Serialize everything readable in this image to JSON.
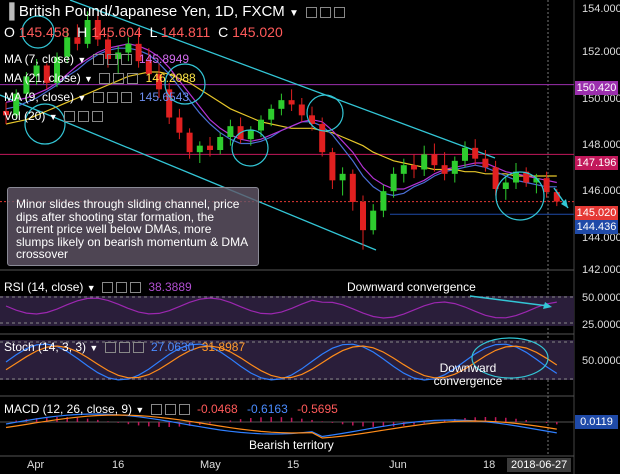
{
  "header": {
    "title": "British Pound/Japanese Yen, 1D, FXCM",
    "ohlc": {
      "o_label": "O",
      "o": "145.458",
      "h_label": "H",
      "h": "145.604",
      "l_label": "L",
      "l": "144.811",
      "c_label": "C",
      "c": "145.020"
    },
    "ma7": {
      "label": "MA (7, close)",
      "value": "145.8949"
    },
    "ma21": {
      "label": "MA (21, close)",
      "value": "146.2088"
    },
    "ma9": {
      "label": "MA (9, close)",
      "value": "145.6543"
    },
    "vol": {
      "label": "Vol (20)"
    }
  },
  "annotation": {
    "note": "Minor slides through sliding channel, price dips after shooting star formation, the current price well below DMAs, more slumps likely on bearish momentum & DMA crossover"
  },
  "price_axis": {
    "ticks": [
      "154.000",
      "152.000",
      "150.000",
      "148.000",
      "146.000",
      "144.000",
      "142.000"
    ],
    "markers": [
      {
        "label": "150.420",
        "color": "#9b2fae"
      },
      {
        "label": "147.196",
        "color": "#c2185b"
      },
      {
        "label": "145.020",
        "color": "#e53935"
      },
      {
        "label": "144.436",
        "color": "#1f4aa8"
      }
    ]
  },
  "rsi": {
    "label": "RSI (14, close)",
    "value": "38.3889",
    "ticks": [
      "50.0000",
      "25.0000"
    ],
    "annotation": "Downward convergence"
  },
  "stoch": {
    "label": "Stoch (14, 3, 3)",
    "k": "27.0630",
    "d": "31.8987",
    "ticks": [
      "50.0000"
    ],
    "annotation": "Downward convergence"
  },
  "macd": {
    "label": "MACD (12, 26, close, 9)",
    "values": [
      "-0.0468",
      "-0.6163",
      "-0.5695"
    ],
    "marker": "0.0119",
    "annotation": "Bearish territory"
  },
  "time_axis": {
    "labels": [
      "Apr",
      "16",
      "May",
      "15",
      "Jun",
      "18"
    ],
    "current": "2018-06-27"
  },
  "colors": {
    "up": "#2ecc2e",
    "down": "#e02020",
    "ma7": "#b533d6",
    "ma21": "#e6c62a",
    "ma9": "#4a6fd6",
    "channel": "#33c6d6",
    "rsi": "#9c27b0",
    "stoch_k": "#2f7fff",
    "stoch_d": "#ff8c1a",
    "macd_line": "#2f7fff",
    "signal": "#ff8c1a",
    "panel": "#2a1e3a",
    "hist": "#c2185b"
  },
  "chart_data": {
    "type": "candlestick",
    "symbol": "British Pound/Japanese Yen",
    "timeframe": "1D",
    "y_range": [
      142.0,
      154.0
    ],
    "candles": [
      {
        "o": 149.2,
        "h": 149.6,
        "l": 148.6,
        "c": 149.0
      },
      {
        "o": 149.0,
        "h": 150.2,
        "l": 148.8,
        "c": 150.0
      },
      {
        "o": 150.0,
        "h": 151.0,
        "l": 149.6,
        "c": 150.8
      },
      {
        "o": 150.8,
        "h": 151.6,
        "l": 150.4,
        "c": 151.3
      },
      {
        "o": 151.3,
        "h": 151.4,
        "l": 150.2,
        "c": 150.5
      },
      {
        "o": 150.5,
        "h": 151.9,
        "l": 150.3,
        "c": 151.7
      },
      {
        "o": 151.7,
        "h": 153.0,
        "l": 151.4,
        "c": 152.6
      },
      {
        "o": 152.6,
        "h": 153.2,
        "l": 152.0,
        "c": 152.3
      },
      {
        "o": 152.3,
        "h": 153.8,
        "l": 152.1,
        "c": 153.4
      },
      {
        "o": 153.4,
        "h": 153.7,
        "l": 152.2,
        "c": 152.5
      },
      {
        "o": 152.5,
        "h": 152.8,
        "l": 151.2,
        "c": 151.6
      },
      {
        "o": 151.6,
        "h": 152.2,
        "l": 150.9,
        "c": 151.9
      },
      {
        "o": 151.9,
        "h": 152.6,
        "l": 151.5,
        "c": 152.3
      },
      {
        "o": 152.3,
        "h": 152.9,
        "l": 151.2,
        "c": 151.5
      },
      {
        "o": 151.5,
        "h": 152.1,
        "l": 150.6,
        "c": 150.9
      },
      {
        "o": 150.9,
        "h": 151.4,
        "l": 149.8,
        "c": 150.2
      },
      {
        "o": 150.2,
        "h": 150.5,
        "l": 148.6,
        "c": 148.9
      },
      {
        "o": 148.9,
        "h": 149.3,
        "l": 147.9,
        "c": 148.2
      },
      {
        "o": 148.2,
        "h": 148.4,
        "l": 147.0,
        "c": 147.3
      },
      {
        "o": 147.3,
        "h": 147.8,
        "l": 146.8,
        "c": 147.6
      },
      {
        "o": 147.6,
        "h": 148.0,
        "l": 147.1,
        "c": 147.4
      },
      {
        "o": 147.4,
        "h": 148.2,
        "l": 147.2,
        "c": 148.0
      },
      {
        "o": 148.0,
        "h": 148.8,
        "l": 147.6,
        "c": 148.5
      },
      {
        "o": 148.5,
        "h": 148.9,
        "l": 147.7,
        "c": 147.9
      },
      {
        "o": 147.9,
        "h": 148.5,
        "l": 147.6,
        "c": 148.3
      },
      {
        "o": 148.3,
        "h": 149.0,
        "l": 148.0,
        "c": 148.8
      },
      {
        "o": 148.8,
        "h": 149.5,
        "l": 148.5,
        "c": 149.3
      },
      {
        "o": 149.3,
        "h": 150.0,
        "l": 149.0,
        "c": 149.7
      },
      {
        "o": 149.7,
        "h": 150.2,
        "l": 149.2,
        "c": 149.5
      },
      {
        "o": 149.5,
        "h": 149.8,
        "l": 148.7,
        "c": 149.0
      },
      {
        "o": 149.0,
        "h": 149.4,
        "l": 148.3,
        "c": 148.6
      },
      {
        "o": 148.6,
        "h": 148.9,
        "l": 147.1,
        "c": 147.3
      },
      {
        "o": 147.3,
        "h": 147.5,
        "l": 145.6,
        "c": 146.0
      },
      {
        "o": 146.0,
        "h": 146.6,
        "l": 145.3,
        "c": 146.3
      },
      {
        "o": 146.3,
        "h": 146.5,
        "l": 144.6,
        "c": 145.0
      },
      {
        "o": 145.0,
        "h": 145.3,
        "l": 142.8,
        "c": 143.7
      },
      {
        "o": 143.7,
        "h": 144.9,
        "l": 143.5,
        "c": 144.6
      },
      {
        "o": 144.6,
        "h": 145.8,
        "l": 144.3,
        "c": 145.5
      },
      {
        "o": 145.5,
        "h": 146.6,
        "l": 145.2,
        "c": 146.3
      },
      {
        "o": 146.3,
        "h": 147.0,
        "l": 145.9,
        "c": 146.7
      },
      {
        "o": 146.7,
        "h": 147.2,
        "l": 146.1,
        "c": 146.5
      },
      {
        "o": 146.5,
        "h": 147.6,
        "l": 146.2,
        "c": 147.2
      },
      {
        "o": 147.2,
        "h": 147.7,
        "l": 146.4,
        "c": 146.7
      },
      {
        "o": 146.7,
        "h": 147.3,
        "l": 146.0,
        "c": 146.3
      },
      {
        "o": 146.3,
        "h": 147.1,
        "l": 145.9,
        "c": 146.9
      },
      {
        "o": 146.9,
        "h": 147.8,
        "l": 146.6,
        "c": 147.5
      },
      {
        "o": 147.5,
        "h": 147.9,
        "l": 146.7,
        "c": 147.0
      },
      {
        "o": 147.0,
        "h": 147.4,
        "l": 146.4,
        "c": 146.6
      },
      {
        "o": 146.6,
        "h": 146.9,
        "l": 145.3,
        "c": 145.6
      },
      {
        "o": 145.6,
        "h": 146.2,
        "l": 145.1,
        "c": 145.9
      },
      {
        "o": 145.9,
        "h": 146.8,
        "l": 145.6,
        "c": 146.4
      },
      {
        "o": 146.4,
        "h": 146.6,
        "l": 145.7,
        "c": 145.9
      },
      {
        "o": 145.9,
        "h": 146.3,
        "l": 145.4,
        "c": 146.1
      },
      {
        "o": 146.1,
        "h": 146.4,
        "l": 145.2,
        "c": 145.458
      },
      {
        "o": 145.458,
        "h": 145.604,
        "l": 144.811,
        "c": 145.02
      }
    ],
    "ma7": [
      149.6,
      149.7,
      149.8,
      150.0,
      150.2,
      150.5,
      150.9,
      151.3,
      151.6,
      151.9,
      152.1,
      152.2,
      152.3,
      152.2,
      152.0,
      151.7,
      151.2,
      150.6,
      150.0,
      149.4,
      148.8,
      148.4,
      148.1,
      147.9,
      147.8,
      147.9,
      148.1,
      148.3,
      148.5,
      148.7,
      148.8,
      148.7,
      148.3,
      147.8,
      147.3,
      146.6,
      146.1,
      145.8,
      145.6,
      145.6,
      145.8,
      146.0,
      146.3,
      146.5,
      146.6,
      146.7,
      146.8,
      146.8,
      146.6,
      146.4,
      146.3,
      146.2,
      146.1,
      146.0,
      145.9
    ],
    "ma21": [
      148.6,
      148.7,
      148.8,
      149.0,
      149.2,
      149.4,
      149.6,
      149.8,
      150.0,
      150.2,
      150.4,
      150.6,
      150.8,
      150.9,
      151.0,
      151.0,
      150.9,
      150.7,
      150.5,
      150.2,
      149.9,
      149.6,
      149.3,
      149.1,
      148.9,
      148.7,
      148.6,
      148.5,
      148.4,
      148.4,
      148.4,
      148.3,
      148.2,
      148.0,
      147.8,
      147.6,
      147.3,
      147.1,
      146.9,
      146.8,
      146.7,
      146.6,
      146.5,
      146.5,
      146.5,
      146.4,
      146.4,
      146.3,
      146.3,
      146.3,
      146.2,
      146.2,
      146.2,
      146.2,
      146.2
    ],
    "ma9": [
      149.3,
      149.4,
      149.6,
      149.8,
      150.1,
      150.4,
      150.8,
      151.1,
      151.5,
      151.8,
      152.0,
      152.1,
      152.1,
      152.0,
      151.8,
      151.4,
      150.9,
      150.3,
      149.7,
      149.1,
      148.6,
      148.2,
      147.9,
      147.7,
      147.7,
      147.8,
      148.0,
      148.3,
      148.5,
      148.7,
      148.7,
      148.5,
      148.1,
      147.5,
      146.9,
      146.2,
      145.7,
      145.4,
      145.3,
      145.4,
      145.7,
      145.9,
      146.2,
      146.4,
      146.5,
      146.6,
      146.7,
      146.6,
      146.4,
      146.2,
      146.0,
      145.9,
      145.8,
      145.7,
      145.7
    ]
  }
}
